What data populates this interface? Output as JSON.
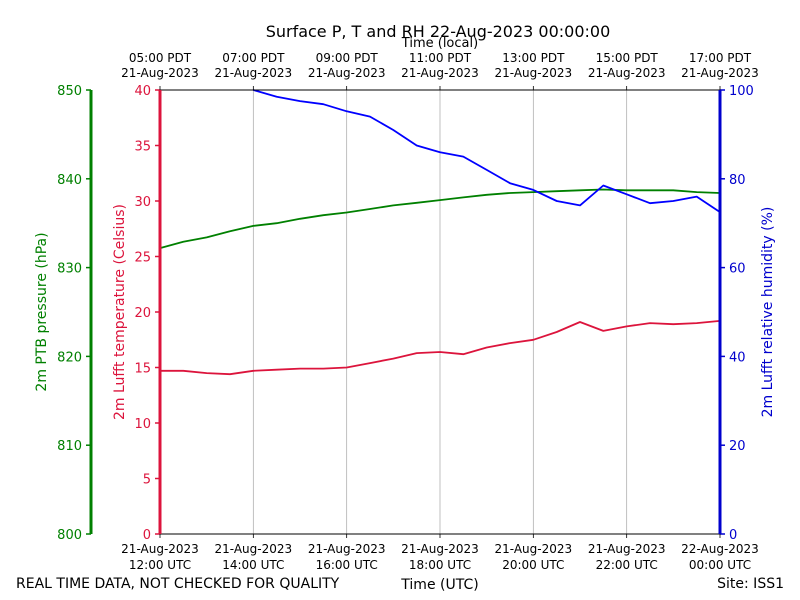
{
  "chart_data": {
    "type": "line",
    "title": "Surface P, T and RH 22-Aug-2023 00:00:00",
    "top_xlabel": "Time (local)",
    "xlabel": "Time (UTC)",
    "x_ticks_utc": [
      [
        "21-Aug-2023",
        "12:00 UTC"
      ],
      [
        "21-Aug-2023",
        "14:00 UTC"
      ],
      [
        "21-Aug-2023",
        "16:00 UTC"
      ],
      [
        "21-Aug-2023",
        "18:00 UTC"
      ],
      [
        "21-Aug-2023",
        "20:00 UTC"
      ],
      [
        "21-Aug-2023",
        "22:00 UTC"
      ],
      [
        "22-Aug-2023",
        "00:00 UTC"
      ]
    ],
    "x_ticks_local": [
      [
        "05:00 PDT",
        "21-Aug-2023"
      ],
      [
        "07:00 PDT",
        "21-Aug-2023"
      ],
      [
        "09:00 PDT",
        "21-Aug-2023"
      ],
      [
        "11:00 PDT",
        "21-Aug-2023"
      ],
      [
        "13:00 PDT",
        "21-Aug-2023"
      ],
      [
        "15:00 PDT",
        "21-Aug-2023"
      ],
      [
        "17:00 PDT",
        "21-Aug-2023"
      ]
    ],
    "xlim_utc": [
      "2023-08-21T12:00",
      "2023-08-22T00:00"
    ],
    "grid_x": true,
    "axes": [
      {
        "id": "pressure",
        "label": "2m PTB pressure (hPa)",
        "color": "#008000",
        "ylim": [
          800,
          850
        ],
        "ticks": [
          800,
          810,
          820,
          830,
          840,
          850
        ]
      },
      {
        "id": "temperature",
        "label": "2m Lufft temperature (Celsius)",
        "color": "#dc143c",
        "ylim": [
          0,
          40
        ],
        "ticks": [
          0,
          5,
          10,
          15,
          20,
          25,
          30,
          35,
          40
        ]
      },
      {
        "id": "humidity",
        "label": "2m Lufft relative humidity (%)",
        "color": "#0000cd",
        "ylim": [
          0,
          100
        ],
        "ticks": [
          0,
          20,
          40,
          60,
          80,
          100
        ]
      }
    ],
    "series": [
      {
        "axis": "pressure",
        "color": "#008000",
        "x_utc": [
          "2023-08-21T12:00",
          "2023-08-21T12:30",
          "2023-08-21T13:00",
          "2023-08-21T13:30",
          "2023-08-21T14:00",
          "2023-08-21T14:30",
          "2023-08-21T15:00",
          "2023-08-21T15:30",
          "2023-08-21T16:00",
          "2023-08-21T16:30",
          "2023-08-21T17:00",
          "2023-08-21T17:30",
          "2023-08-21T18:00",
          "2023-08-21T18:30",
          "2023-08-21T19:00",
          "2023-08-21T19:30",
          "2023-08-21T20:00",
          "2023-08-21T20:30",
          "2023-08-21T21:00",
          "2023-08-21T21:30",
          "2023-08-21T22:00",
          "2023-08-21T22:30",
          "2023-08-21T23:00",
          "2023-08-21T23:30",
          "2023-08-22T00:00"
        ],
        "values": [
          832.2,
          832.9,
          833.4,
          834.1,
          834.7,
          835.0,
          835.5,
          835.9,
          836.2,
          836.6,
          837.0,
          837.3,
          837.6,
          837.9,
          838.2,
          838.4,
          838.5,
          838.6,
          838.7,
          838.8,
          838.7,
          838.7,
          838.7,
          838.5,
          838.4
        ]
      },
      {
        "axis": "temperature",
        "color": "#dc143c",
        "x_utc": [
          "2023-08-21T12:00",
          "2023-08-21T12:30",
          "2023-08-21T13:00",
          "2023-08-21T13:30",
          "2023-08-21T14:00",
          "2023-08-21T14:30",
          "2023-08-21T15:00",
          "2023-08-21T15:30",
          "2023-08-21T16:00",
          "2023-08-21T16:30",
          "2023-08-21T17:00",
          "2023-08-21T17:30",
          "2023-08-21T18:00",
          "2023-08-21T18:30",
          "2023-08-21T19:00",
          "2023-08-21T19:30",
          "2023-08-21T20:00",
          "2023-08-21T20:30",
          "2023-08-21T21:00",
          "2023-08-21T21:30",
          "2023-08-21T22:00",
          "2023-08-21T22:30",
          "2023-08-21T23:00",
          "2023-08-21T23:30",
          "2023-08-22T00:00"
        ],
        "values": [
          14.7,
          14.7,
          14.5,
          14.4,
          14.7,
          14.8,
          14.9,
          14.9,
          15.0,
          15.4,
          15.8,
          16.3,
          16.4,
          16.2,
          16.8,
          17.2,
          17.5,
          18.2,
          19.1,
          18.3,
          18.7,
          19.0,
          18.9,
          19.0,
          19.2
        ]
      },
      {
        "axis": "humidity",
        "color": "#0000ff",
        "x_utc": [
          "2023-08-21T14:00",
          "2023-08-21T14:30",
          "2023-08-21T15:00",
          "2023-08-21T15:30",
          "2023-08-21T16:00",
          "2023-08-21T16:30",
          "2023-08-21T17:00",
          "2023-08-21T17:30",
          "2023-08-21T18:00",
          "2023-08-21T18:30",
          "2023-08-21T19:00",
          "2023-08-21T19:30",
          "2023-08-21T20:00",
          "2023-08-21T20:30",
          "2023-08-21T21:00",
          "2023-08-21T21:30",
          "2023-08-21T22:00",
          "2023-08-21T22:30",
          "2023-08-21T23:00",
          "2023-08-21T23:30",
          "2023-08-22T00:00"
        ],
        "values": [
          100,
          98.5,
          97.5,
          96.8,
          95.2,
          94.0,
          91.0,
          87.5,
          86.0,
          85.0,
          82.0,
          79.0,
          77.5,
          75.0,
          74.0,
          78.5,
          76.5,
          74.5,
          75.0,
          76.0,
          72.5
        ]
      }
    ]
  },
  "footer": {
    "left": "REAL TIME DATA, NOT CHECKED FOR QUALITY",
    "right": "Site: ISS1"
  }
}
